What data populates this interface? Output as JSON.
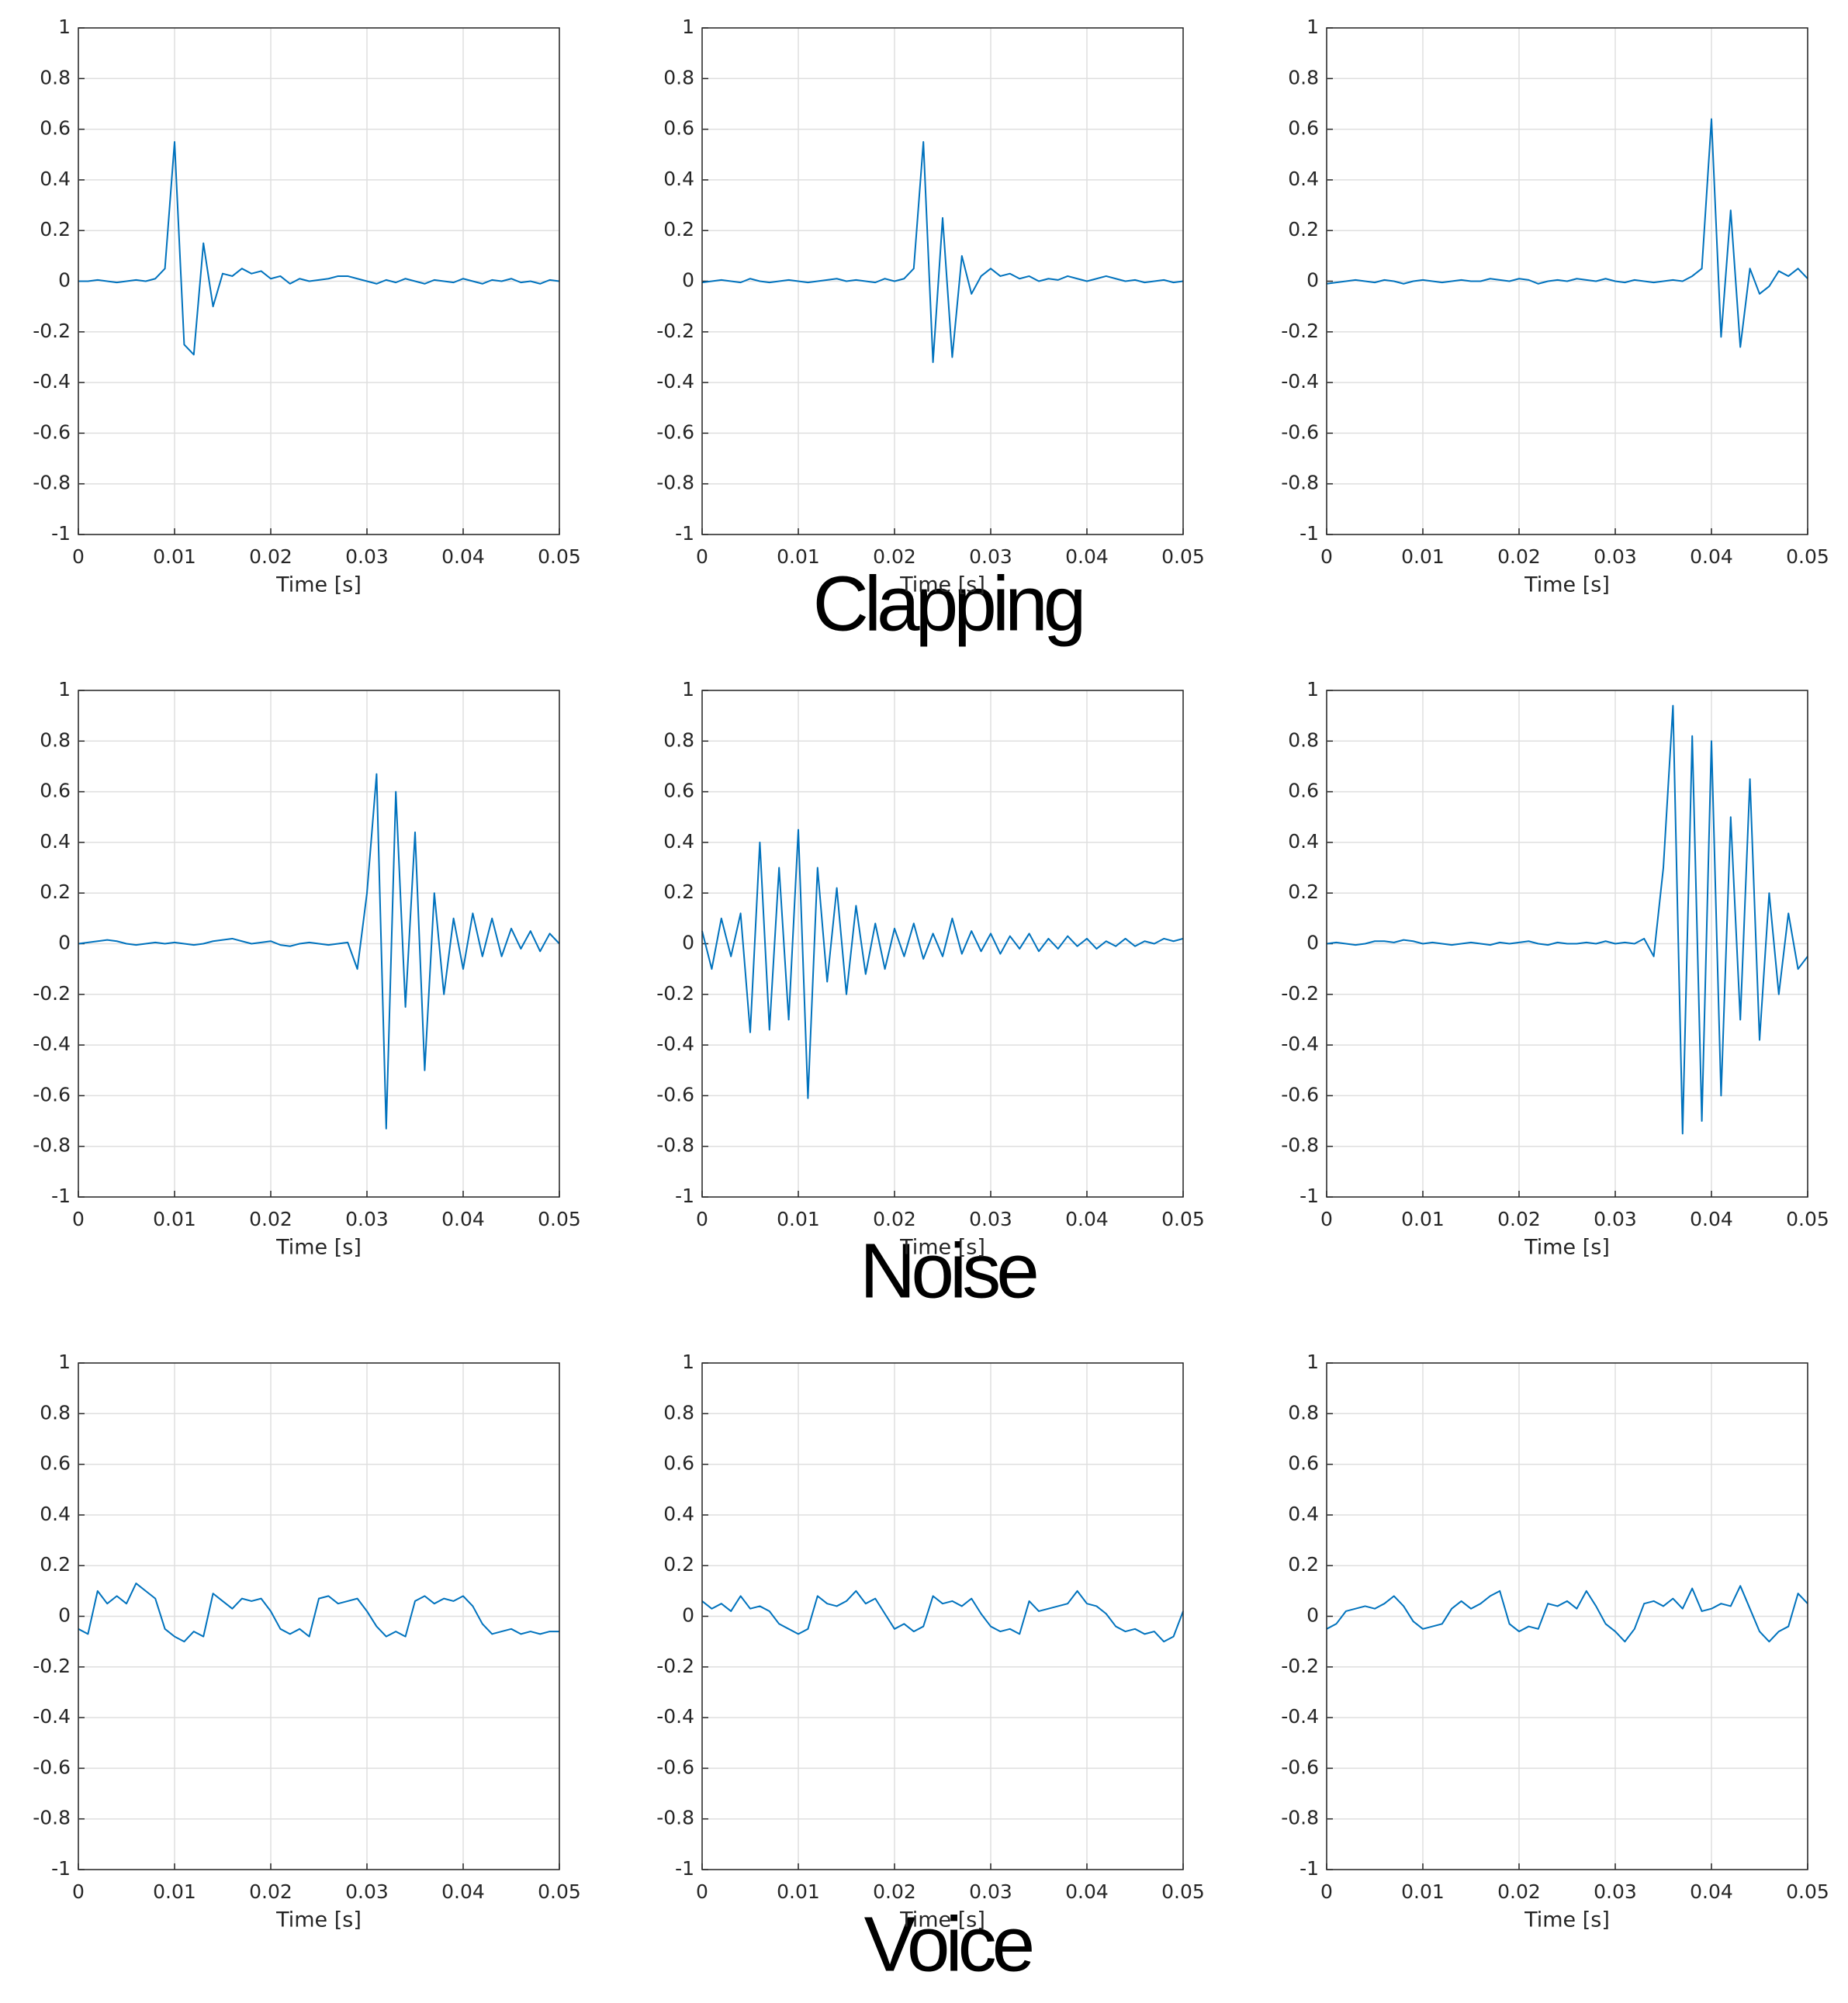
{
  "chart_data": [
    {
      "type": "line",
      "xlabel": "Time [s]",
      "color": "#0072bd",
      "grid": true,
      "xlim": [
        0,
        0.05
      ],
      "ylim": [
        -1,
        1
      ],
      "xticks": [
        0,
        0.01,
        0.02,
        0.03,
        0.04,
        0.05
      ],
      "yticks": [
        -1,
        -0.8,
        -0.6,
        -0.4,
        -0.2,
        0,
        0.2,
        0.4,
        0.6,
        0.8,
        1
      ],
      "x": [
        0,
        0.001,
        0.002,
        0.003,
        0.004,
        0.005,
        0.006,
        0.007,
        0.008,
        0.009,
        0.01,
        0.011,
        0.012,
        0.013,
        0.014,
        0.015,
        0.016,
        0.017,
        0.018,
        0.019,
        0.02,
        0.021,
        0.022,
        0.023,
        0.024,
        0.025,
        0.026,
        0.027,
        0.028,
        0.029,
        0.03,
        0.031,
        0.032,
        0.033,
        0.034,
        0.035,
        0.036,
        0.037,
        0.038,
        0.039,
        0.04,
        0.041,
        0.042,
        0.043,
        0.044,
        0.045,
        0.046,
        0.047,
        0.048,
        0.049,
        0.05
      ],
      "values": [
        0,
        0,
        0.005,
        0,
        -0.005,
        0,
        0.005,
        0,
        0.01,
        0.05,
        0.55,
        -0.25,
        -0.29,
        0.15,
        -0.1,
        0.03,
        0.02,
        0.05,
        0.03,
        0.04,
        0.01,
        0.02,
        -0.01,
        0.01,
        0,
        0.005,
        0.01,
        0.02,
        0.02,
        0.01,
        0,
        -0.01,
        0.005,
        -0.005,
        0.01,
        0,
        -0.01,
        0.005,
        0,
        -0.005,
        0.01,
        0,
        -0.01,
        0.005,
        0,
        0.01,
        -0.005,
        0,
        -0.01,
        0.005,
        0
      ]
    },
    {
      "type": "line",
      "xlabel": "Time [s]",
      "color": "#0072bd",
      "grid": true,
      "xlim": [
        0,
        0.05
      ],
      "ylim": [
        -1,
        1
      ],
      "xticks": [
        0,
        0.01,
        0.02,
        0.03,
        0.04,
        0.05
      ],
      "yticks": [
        -1,
        -0.8,
        -0.6,
        -0.4,
        -0.2,
        0,
        0.2,
        0.4,
        0.6,
        0.8,
        1
      ],
      "x": [
        0,
        0.001,
        0.002,
        0.003,
        0.004,
        0.005,
        0.006,
        0.007,
        0.008,
        0.009,
        0.01,
        0.011,
        0.012,
        0.013,
        0.014,
        0.015,
        0.016,
        0.017,
        0.018,
        0.019,
        0.02,
        0.021,
        0.022,
        0.023,
        0.024,
        0.025,
        0.026,
        0.027,
        0.028,
        0.029,
        0.03,
        0.031,
        0.032,
        0.033,
        0.034,
        0.035,
        0.036,
        0.037,
        0.038,
        0.039,
        0.04,
        0.041,
        0.042,
        0.043,
        0.044,
        0.045,
        0.046,
        0.047,
        0.048,
        0.049,
        0.05
      ],
      "values": [
        -0.005,
        0,
        0.005,
        0,
        -0.005,
        0.01,
        0,
        -0.005,
        0,
        0.005,
        0,
        -0.005,
        0,
        0.005,
        0.01,
        0,
        0.005,
        0,
        -0.005,
        0.01,
        0,
        0.01,
        0.05,
        0.55,
        -0.32,
        0.25,
        -0.3,
        0.1,
        -0.05,
        0.02,
        0.05,
        0.02,
        0.03,
        0.01,
        0.02,
        0,
        0.01,
        0.005,
        0.02,
        0.01,
        0,
        0.01,
        0.02,
        0.01,
        0,
        0.005,
        -0.005,
        0,
        0.005,
        -0.005,
        0
      ]
    },
    {
      "type": "line",
      "xlabel": "Time [s]",
      "color": "#0072bd",
      "grid": true,
      "xlim": [
        0,
        0.05
      ],
      "ylim": [
        -1,
        1
      ],
      "xticks": [
        0,
        0.01,
        0.02,
        0.03,
        0.04,
        0.05
      ],
      "yticks": [
        -1,
        -0.8,
        -0.6,
        -0.4,
        -0.2,
        0,
        0.2,
        0.4,
        0.6,
        0.8,
        1
      ],
      "x": [
        0,
        0.001,
        0.002,
        0.003,
        0.004,
        0.005,
        0.006,
        0.007,
        0.008,
        0.009,
        0.01,
        0.011,
        0.012,
        0.013,
        0.014,
        0.015,
        0.016,
        0.017,
        0.018,
        0.019,
        0.02,
        0.021,
        0.022,
        0.023,
        0.024,
        0.025,
        0.026,
        0.027,
        0.028,
        0.029,
        0.03,
        0.031,
        0.032,
        0.033,
        0.034,
        0.035,
        0.036,
        0.037,
        0.038,
        0.039,
        0.04,
        0.041,
        0.042,
        0.043,
        0.044,
        0.045,
        0.046,
        0.047,
        0.048,
        0.049,
        0.05
      ],
      "values": [
        -0.01,
        -0.005,
        0,
        0.005,
        0,
        -0.005,
        0.005,
        0,
        -0.01,
        0,
        0.005,
        0,
        -0.005,
        0,
        0.005,
        0,
        0,
        0.01,
        0.005,
        0,
        0.01,
        0.005,
        -0.01,
        0,
        0.005,
        0,
        0.01,
        0.005,
        0,
        0.01,
        0,
        -0.005,
        0.005,
        0,
        -0.005,
        0,
        0.005,
        0,
        0.02,
        0.05,
        0.64,
        -0.22,
        0.28,
        -0.26,
        0.05,
        -0.05,
        -0.02,
        0.04,
        0.02,
        0.05,
        0.01
      ]
    },
    {
      "type": "line",
      "xlabel": "Time [s]",
      "color": "#0072bd",
      "grid": true,
      "xlim": [
        0,
        0.05
      ],
      "ylim": [
        -1,
        1
      ],
      "xticks": [
        0,
        0.01,
        0.02,
        0.03,
        0.04,
        0.05
      ],
      "yticks": [
        -1,
        -0.8,
        -0.6,
        -0.4,
        -0.2,
        0,
        0.2,
        0.4,
        0.6,
        0.8,
        1
      ],
      "x": [
        0,
        0.001,
        0.002,
        0.003,
        0.004,
        0.005,
        0.006,
        0.007,
        0.008,
        0.009,
        0.01,
        0.011,
        0.012,
        0.013,
        0.014,
        0.015,
        0.016,
        0.017,
        0.018,
        0.019,
        0.02,
        0.021,
        0.022,
        0.023,
        0.024,
        0.025,
        0.026,
        0.027,
        0.028,
        0.029,
        0.03,
        0.031,
        0.032,
        0.033,
        0.034,
        0.035,
        0.036,
        0.037,
        0.038,
        0.039,
        0.04,
        0.041,
        0.042,
        0.043,
        0.044,
        0.045,
        0.046,
        0.047,
        0.048,
        0.049,
        0.05
      ],
      "values": [
        0,
        0.005,
        0.01,
        0.015,
        0.01,
        0,
        -0.005,
        0,
        0.005,
        0,
        0.005,
        0,
        -0.005,
        0,
        0.01,
        0.015,
        0.02,
        0.01,
        0,
        0.005,
        0.01,
        -0.005,
        -0.01,
        0,
        0.005,
        0,
        -0.005,
        0,
        0.005,
        -0.1,
        0.2,
        0.67,
        -0.73,
        0.6,
        -0.25,
        0.44,
        -0.5,
        0.2,
        -0.2,
        0.1,
        -0.1,
        0.12,
        -0.05,
        0.1,
        -0.05,
        0.06,
        -0.02,
        0.05,
        -0.03,
        0.04,
        0
      ]
    },
    {
      "type": "line",
      "xlabel": "Time [s]",
      "color": "#0072bd",
      "grid": true,
      "xlim": [
        0,
        0.05
      ],
      "ylim": [
        -1,
        1
      ],
      "xticks": [
        0,
        0.01,
        0.02,
        0.03,
        0.04,
        0.05
      ],
      "yticks": [
        -1,
        -0.8,
        -0.6,
        -0.4,
        -0.2,
        0,
        0.2,
        0.4,
        0.6,
        0.8,
        1
      ],
      "x": [
        0,
        0.001,
        0.002,
        0.003,
        0.004,
        0.005,
        0.006,
        0.007,
        0.008,
        0.009,
        0.01,
        0.011,
        0.012,
        0.013,
        0.014,
        0.015,
        0.016,
        0.017,
        0.018,
        0.019,
        0.02,
        0.021,
        0.022,
        0.023,
        0.024,
        0.025,
        0.026,
        0.027,
        0.028,
        0.029,
        0.03,
        0.031,
        0.032,
        0.033,
        0.034,
        0.035,
        0.036,
        0.037,
        0.038,
        0.039,
        0.04,
        0.041,
        0.042,
        0.043,
        0.044,
        0.045,
        0.046,
        0.047,
        0.048,
        0.049,
        0.05
      ],
      "values": [
        0.05,
        -0.1,
        0.1,
        -0.05,
        0.12,
        -0.35,
        0.4,
        -0.34,
        0.3,
        -0.3,
        0.45,
        -0.61,
        0.3,
        -0.15,
        0.22,
        -0.2,
        0.15,
        -0.12,
        0.08,
        -0.1,
        0.06,
        -0.05,
        0.08,
        -0.06,
        0.04,
        -0.05,
        0.1,
        -0.04,
        0.05,
        -0.03,
        0.04,
        -0.04,
        0.03,
        -0.02,
        0.04,
        -0.03,
        0.02,
        -0.02,
        0.03,
        -0.01,
        0.02,
        -0.02,
        0.01,
        -0.01,
        0.02,
        -0.01,
        0.01,
        0,
        0.02,
        0.01,
        0.02
      ]
    },
    {
      "type": "line",
      "xlabel": "Time [s]",
      "color": "#0072bd",
      "grid": true,
      "xlim": [
        0,
        0.05
      ],
      "ylim": [
        -1,
        1
      ],
      "xticks": [
        0,
        0.01,
        0.02,
        0.03,
        0.04,
        0.05
      ],
      "yticks": [
        -1,
        -0.8,
        -0.6,
        -0.4,
        -0.2,
        0,
        0.2,
        0.4,
        0.6,
        0.8,
        1
      ],
      "x": [
        0,
        0.001,
        0.002,
        0.003,
        0.004,
        0.005,
        0.006,
        0.007,
        0.008,
        0.009,
        0.01,
        0.011,
        0.012,
        0.013,
        0.014,
        0.015,
        0.016,
        0.017,
        0.018,
        0.019,
        0.02,
        0.021,
        0.022,
        0.023,
        0.024,
        0.025,
        0.026,
        0.027,
        0.028,
        0.029,
        0.03,
        0.031,
        0.032,
        0.033,
        0.034,
        0.035,
        0.036,
        0.037,
        0.038,
        0.039,
        0.04,
        0.041,
        0.042,
        0.043,
        0.044,
        0.045,
        0.046,
        0.047,
        0.048,
        0.049,
        0.05
      ],
      "values": [
        0,
        0.005,
        0,
        -0.005,
        0,
        0.01,
        0.01,
        0.005,
        0.015,
        0.01,
        0,
        0.005,
        0,
        -0.005,
        0,
        0.005,
        0,
        -0.005,
        0.005,
        0,
        0.005,
        0.01,
        0,
        -0.005,
        0.005,
        0,
        0,
        0.005,
        0,
        0.01,
        0,
        0.005,
        0,
        0.02,
        -0.05,
        0.3,
        0.94,
        -0.75,
        0.82,
        -0.7,
        0.8,
        -0.6,
        0.5,
        -0.3,
        0.65,
        -0.38,
        0.2,
        -0.2,
        0.12,
        -0.1,
        -0.05
      ]
    },
    {
      "type": "line",
      "xlabel": "Time [s]",
      "color": "#0072bd",
      "grid": true,
      "xlim": [
        0,
        0.05
      ],
      "ylim": [
        -1,
        1
      ],
      "xticks": [
        0,
        0.01,
        0.02,
        0.03,
        0.04,
        0.05
      ],
      "yticks": [
        -1,
        -0.8,
        -0.6,
        -0.4,
        -0.2,
        0,
        0.2,
        0.4,
        0.6,
        0.8,
        1
      ],
      "x": [
        0,
        0.001,
        0.002,
        0.003,
        0.004,
        0.005,
        0.006,
        0.007,
        0.008,
        0.009,
        0.01,
        0.011,
        0.012,
        0.013,
        0.014,
        0.015,
        0.016,
        0.017,
        0.018,
        0.019,
        0.02,
        0.021,
        0.022,
        0.023,
        0.024,
        0.025,
        0.026,
        0.027,
        0.028,
        0.029,
        0.03,
        0.031,
        0.032,
        0.033,
        0.034,
        0.035,
        0.036,
        0.037,
        0.038,
        0.039,
        0.04,
        0.041,
        0.042,
        0.043,
        0.044,
        0.045,
        0.046,
        0.047,
        0.048,
        0.049,
        0.05
      ],
      "values": [
        -0.05,
        -0.07,
        0.1,
        0.05,
        0.08,
        0.05,
        0.13,
        0.1,
        0.07,
        -0.05,
        -0.08,
        -0.1,
        -0.06,
        -0.08,
        0.09,
        0.06,
        0.03,
        0.07,
        0.06,
        0.07,
        0.02,
        -0.05,
        -0.07,
        -0.05,
        -0.08,
        0.07,
        0.08,
        0.05,
        0.06,
        0.07,
        0.02,
        -0.04,
        -0.08,
        -0.06,
        -0.08,
        0.06,
        0.08,
        0.05,
        0.07,
        0.06,
        0.08,
        0.04,
        -0.03,
        -0.07,
        -0.06,
        -0.05,
        -0.07,
        -0.06,
        -0.07,
        -0.06,
        -0.06
      ]
    },
    {
      "type": "line",
      "xlabel": "Time [s]",
      "color": "#0072bd",
      "grid": true,
      "xlim": [
        0,
        0.05
      ],
      "ylim": [
        -1,
        1
      ],
      "xticks": [
        0,
        0.01,
        0.02,
        0.03,
        0.04,
        0.05
      ],
      "yticks": [
        -1,
        -0.8,
        -0.6,
        -0.4,
        -0.2,
        0,
        0.2,
        0.4,
        0.6,
        0.8,
        1
      ],
      "x": [
        0,
        0.001,
        0.002,
        0.003,
        0.004,
        0.005,
        0.006,
        0.007,
        0.008,
        0.009,
        0.01,
        0.011,
        0.012,
        0.013,
        0.014,
        0.015,
        0.016,
        0.017,
        0.018,
        0.019,
        0.02,
        0.021,
        0.022,
        0.023,
        0.024,
        0.025,
        0.026,
        0.027,
        0.028,
        0.029,
        0.03,
        0.031,
        0.032,
        0.033,
        0.034,
        0.035,
        0.036,
        0.037,
        0.038,
        0.039,
        0.04,
        0.041,
        0.042,
        0.043,
        0.044,
        0.045,
        0.046,
        0.047,
        0.048,
        0.049,
        0.05
      ],
      "values": [
        0.06,
        0.03,
        0.05,
        0.02,
        0.08,
        0.03,
        0.04,
        0.02,
        -0.03,
        -0.05,
        -0.07,
        -0.05,
        0.08,
        0.05,
        0.04,
        0.06,
        0.1,
        0.05,
        0.07,
        0.01,
        -0.05,
        -0.03,
        -0.06,
        -0.04,
        0.08,
        0.05,
        0.06,
        0.04,
        0.07,
        0.01,
        -0.04,
        -0.06,
        -0.05,
        -0.07,
        0.06,
        0.02,
        0.03,
        0.04,
        0.05,
        0.1,
        0.05,
        0.04,
        0.01,
        -0.04,
        -0.06,
        -0.05,
        -0.07,
        -0.06,
        -0.1,
        -0.08,
        0.02
      ]
    },
    {
      "type": "line",
      "xlabel": "Time [s]",
      "color": "#0072bd",
      "grid": true,
      "xlim": [
        0,
        0.05
      ],
      "ylim": [
        -1,
        1
      ],
      "xticks": [
        0,
        0.01,
        0.02,
        0.03,
        0.04,
        0.05
      ],
      "yticks": [
        -1,
        -0.8,
        -0.6,
        -0.4,
        -0.2,
        0,
        0.2,
        0.4,
        0.6,
        0.8,
        1
      ],
      "x": [
        0,
        0.001,
        0.002,
        0.003,
        0.004,
        0.005,
        0.006,
        0.007,
        0.008,
        0.009,
        0.01,
        0.011,
        0.012,
        0.013,
        0.014,
        0.015,
        0.016,
        0.017,
        0.018,
        0.019,
        0.02,
        0.021,
        0.022,
        0.023,
        0.024,
        0.025,
        0.026,
        0.027,
        0.028,
        0.029,
        0.03,
        0.031,
        0.032,
        0.033,
        0.034,
        0.035,
        0.036,
        0.037,
        0.038,
        0.039,
        0.04,
        0.041,
        0.042,
        0.043,
        0.044,
        0.045,
        0.046,
        0.047,
        0.048,
        0.049,
        0.05
      ],
      "values": [
        -0.05,
        -0.03,
        0.02,
        0.03,
        0.04,
        0.03,
        0.05,
        0.08,
        0.04,
        -0.02,
        -0.05,
        -0.04,
        -0.03,
        0.03,
        0.06,
        0.03,
        0.05,
        0.08,
        0.1,
        -0.03,
        -0.06,
        -0.04,
        -0.05,
        0.05,
        0.04,
        0.06,
        0.03,
        0.1,
        0.04,
        -0.03,
        -0.06,
        -0.1,
        -0.05,
        0.05,
        0.06,
        0.04,
        0.07,
        0.03,
        0.11,
        0.02,
        0.03,
        0.05,
        0.04,
        0.12,
        0.03,
        -0.06,
        -0.1,
        -0.06,
        -0.04,
        0.09,
        0.05
      ]
    }
  ],
  "row_labels": [
    "Clapping",
    "Noise",
    "Voice"
  ]
}
